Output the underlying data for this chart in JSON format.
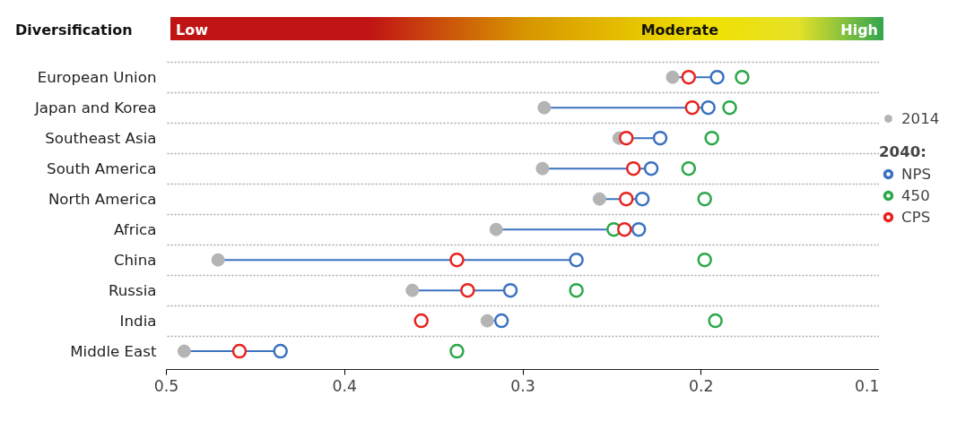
{
  "chart_data": {
    "type": "scatter",
    "categories": [
      "European Union",
      "Japan and Korea",
      "Southeast Asia",
      "South America",
      "North America",
      "Africa",
      "China",
      "Russia",
      "India",
      "Middle East"
    ],
    "orientation": "horizontal",
    "xlim": [
      0.5,
      0.1
    ],
    "xticks": [
      0.5,
      0.4,
      0.3,
      0.2,
      0.1
    ],
    "grid": "y",
    "marker": "circle",
    "legend": "right",
    "legend_title": "2040:",
    "annotations": [
      "Diversification",
      "Low",
      "Moderate",
      "High"
    ],
    "series": [
      {
        "name": "2014",
        "color": "#b4b4b4",
        "values": [
          0.216,
          0.288,
          0.246,
          0.289,
          0.257,
          0.315,
          0.471,
          0.362,
          0.32,
          0.49
        ]
      },
      {
        "name": "NPS",
        "color": "#3a72c0",
        "values": [
          0.191,
          0.196,
          0.223,
          0.228,
          0.233,
          0.235,
          0.27,
          0.307,
          0.312,
          0.436
        ]
      },
      {
        "name": "450",
        "color": "#2ba84a",
        "values": [
          0.177,
          0.184,
          0.194,
          0.207,
          0.198,
          0.249,
          0.198,
          0.27,
          0.192,
          0.337
        ]
      },
      {
        "name": "CPS",
        "color": "#e8231f",
        "values": [
          0.207,
          0.205,
          0.242,
          0.238,
          0.242,
          0.243,
          0.337,
          0.331,
          0.357,
          0.459
        ]
      }
    ]
  }
}
